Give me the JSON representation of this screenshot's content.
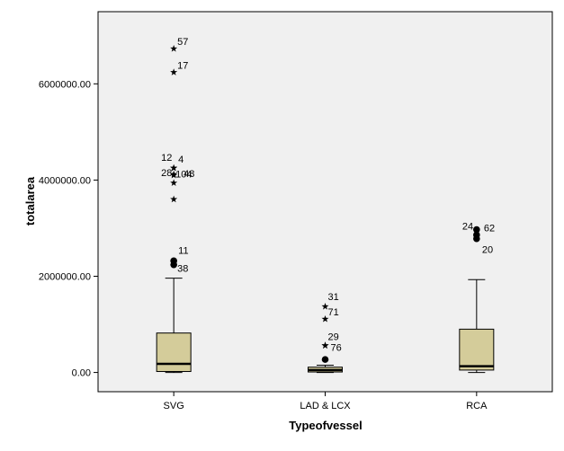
{
  "chart_data": {
    "type": "boxplot",
    "xlabel": "Typeofvessel",
    "ylabel": "totalarea",
    "ylim": [
      -400000,
      7500000
    ],
    "yticks": [
      0,
      2000000,
      4000000,
      6000000
    ],
    "ytick_labels": [
      "0.00",
      "2000000.00",
      "4000000.00",
      "6000000.00"
    ],
    "grid": false,
    "colors": {
      "plot_background": "#f0f0f0",
      "box_fill": "#d4cc9a",
      "stroke": "#000000"
    },
    "categories": [
      "SVG",
      "LAD & LCX",
      "RCA"
    ],
    "boxes": [
      {
        "category": "SVG",
        "whisker_low": 0,
        "q1": 20000,
        "median": 180000,
        "q3": 820000,
        "whisker_high": 1960000,
        "outliers": [
          {
            "value": 2320000,
            "label": "11"
          },
          {
            "value": 2240000,
            "label": "38"
          }
        ],
        "extremes": [
          {
            "value": 6730000,
            "label": "57"
          },
          {
            "value": 6240000,
            "label": "17"
          },
          {
            "value": 4250000,
            "label": "12"
          },
          {
            "value": 4250000,
            "label": "4"
          },
          {
            "value": 4120000,
            "label": "28"
          },
          {
            "value": 4100000,
            "label": "48"
          },
          {
            "value": 3940000,
            "label": "104"
          },
          {
            "value": 3600000,
            "label": ""
          }
        ]
      },
      {
        "category": "LAD & LCX",
        "whisker_low": 0,
        "q1": 10000,
        "median": 50000,
        "q3": 110000,
        "whisker_high": 150000,
        "outliers": [
          {
            "value": 270000,
            "label": ""
          }
        ],
        "extremes": [
          {
            "value": 1370000,
            "label": "31"
          },
          {
            "value": 1110000,
            "label": "71"
          },
          {
            "value": 560000,
            "label": "29"
          },
          {
            "value": 560000,
            "label": "76"
          }
        ]
      },
      {
        "category": "RCA",
        "whisker_low": 0,
        "q1": 50000,
        "median": 130000,
        "q3": 900000,
        "whisker_high": 1930000,
        "outliers": [
          {
            "value": 2970000,
            "label": "24"
          },
          {
            "value": 2860000,
            "label": "62"
          },
          {
            "value": 2780000,
            "label": "20"
          }
        ],
        "extremes": []
      }
    ]
  }
}
